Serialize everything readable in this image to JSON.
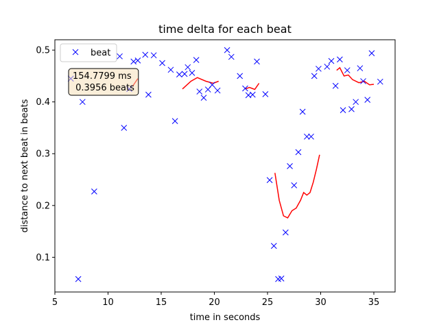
{
  "chart_data": {
    "type": "scatter",
    "title": "time delta for each beat",
    "xlabel": "time in seconds",
    "ylabel": "distance to next beat in beats",
    "xlim": [
      5,
      37
    ],
    "ylim": [
      0.033,
      0.52
    ],
    "xticks": [
      5,
      10,
      15,
      20,
      25,
      30,
      35
    ],
    "yticks": [
      0.1,
      0.2,
      0.3,
      0.4,
      0.5
    ],
    "grid": false,
    "legend": {
      "placement": "top-left",
      "entries": [
        "beat"
      ]
    },
    "series": [
      {
        "name": "beat",
        "marker": "x",
        "color": "#0000ff",
        "x": [
          6.5,
          7.2,
          7.6,
          8.7,
          11.1,
          11.5,
          12.0,
          12.4,
          12.8,
          13.5,
          13.8,
          14.3,
          15.1,
          15.9,
          16.3,
          16.7,
          17.2,
          17.5,
          17.9,
          18.3,
          18.6,
          19.0,
          19.4,
          19.8,
          20.3,
          21.2,
          21.6,
          22.4,
          22.9,
          23.2,
          23.6,
          24.0,
          24.8,
          25.2,
          25.6,
          26.0,
          26.3,
          26.7,
          27.1,
          27.5,
          27.9,
          28.3,
          28.7,
          29.1,
          29.4,
          29.8,
          30.6,
          31.0,
          31.4,
          31.8,
          32.1,
          32.5,
          32.9,
          33.3,
          33.7,
          34.0,
          34.4,
          34.8,
          35.6
        ],
        "y": [
          0.445,
          0.058,
          0.4,
          0.227,
          0.488,
          0.35,
          0.425,
          0.478,
          0.48,
          0.491,
          0.414,
          0.49,
          0.475,
          0.462,
          0.363,
          0.453,
          0.454,
          0.467,
          0.456,
          0.481,
          0.42,
          0.408,
          0.424,
          0.433,
          0.422,
          0.5,
          0.487,
          0.45,
          0.426,
          0.413,
          0.414,
          0.478,
          0.415,
          0.249,
          0.122,
          0.058,
          0.059,
          0.148,
          0.276,
          0.239,
          0.303,
          0.381,
          0.333,
          0.333,
          0.45,
          0.464,
          0.468,
          0.479,
          0.431,
          0.482,
          0.384,
          0.461,
          0.386,
          0.4,
          0.465,
          0.44,
          0.404,
          0.494,
          0.439
        ]
      }
    ],
    "lines": [
      {
        "color": "#ff0000",
        "x": [
          12.3,
          12.8
        ],
        "y": [
          0.43,
          0.445
        ]
      },
      {
        "color": "#ff0000",
        "x": [
          17.0,
          17.8,
          18.4,
          19.2,
          19.9,
          20.4
        ],
        "y": [
          0.425,
          0.44,
          0.447,
          0.44,
          0.436,
          0.44
        ]
      },
      {
        "color": "#ff0000",
        "x": [
          22.9,
          23.3,
          23.8,
          24.2
        ],
        "y": [
          0.425,
          0.428,
          0.424,
          0.436
        ]
      },
      {
        "color": "#ff0000",
        "x": [
          25.7,
          26.1,
          26.5,
          26.9,
          27.3,
          27.7,
          28.1,
          28.4,
          28.7,
          29.0,
          29.3,
          29.6,
          29.9
        ],
        "y": [
          0.263,
          0.21,
          0.18,
          0.176,
          0.19,
          0.195,
          0.21,
          0.225,
          0.22,
          0.225,
          0.245,
          0.27,
          0.298
        ]
      },
      {
        "color": "#ff0000",
        "x": [
          31.5,
          31.8,
          32.2,
          32.6,
          33.0,
          33.6,
          34.1,
          34.6,
          35.0
        ],
        "y": [
          0.461,
          0.466,
          0.45,
          0.452,
          0.443,
          0.437,
          0.44,
          0.433,
          0.434
        ]
      }
    ],
    "annotation": {
      "lines": [
        "154.7799 ms",
        " 0.3956 beats"
      ],
      "placement": "upper-left"
    }
  }
}
